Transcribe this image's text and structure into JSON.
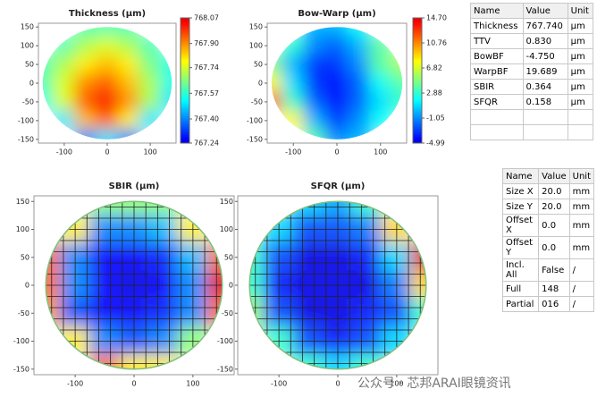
{
  "chart_data": [
    {
      "type": "heatmap",
      "title": "Thickness (µm)",
      "xlim": [
        -160,
        160
      ],
      "ylim": [
        -160,
        160
      ],
      "xticks": [
        -100,
        0,
        100
      ],
      "yticks": [
        150,
        100,
        50,
        0,
        -50,
        -100,
        -150
      ],
      "x": [
        -150,
        -100,
        -50,
        0,
        50,
        100,
        150
      ],
      "y": [
        150,
        100,
        50,
        0,
        -50,
        -100,
        -150
      ],
      "z": [
        [
          null,
          null,
          767.6,
          767.6,
          767.6,
          null,
          null
        ],
        [
          null,
          767.6,
          767.7,
          767.75,
          767.7,
          767.6,
          null
        ],
        [
          767.6,
          767.7,
          767.8,
          767.85,
          767.8,
          767.65,
          767.55
        ],
        [
          767.6,
          767.75,
          767.9,
          767.95,
          767.85,
          767.7,
          767.55
        ],
        [
          767.55,
          767.75,
          767.95,
          768.05,
          767.9,
          767.7,
          767.5
        ],
        [
          null,
          767.5,
          767.85,
          767.95,
          767.8,
          767.5,
          null
        ],
        [
          null,
          null,
          767.4,
          767.5,
          767.4,
          null,
          null
        ]
      ],
      "colorbar_ticks": [
        768.07,
        {
          "value": 767.9,
          "label": "767.90"
        },
        767.74,
        767.57,
        {
          "value": 767.4,
          "label": "767.40"
        },
        767.24
      ]
    },
    {
      "type": "heatmap",
      "title": "Bow-Warp (µm)",
      "xlim": [
        -160,
        160
      ],
      "ylim": [
        -160,
        160
      ],
      "xticks": [
        -100,
        0,
        100
      ],
      "yticks": [
        150,
        100,
        50,
        0,
        -50,
        -100,
        -150
      ],
      "x": [
        -150,
        -100,
        -50,
        0,
        50,
        100,
        150
      ],
      "y": [
        150,
        100,
        50,
        0,
        -50,
        -100,
        -150
      ],
      "z": [
        [
          null,
          null,
          0,
          0,
          2,
          null,
          null
        ],
        [
          null,
          3,
          -1,
          -2,
          0,
          4,
          null
        ],
        [
          5,
          0,
          -3,
          -3,
          -1,
          4,
          6
        ],
        [
          8,
          1,
          -3,
          -4,
          -2,
          2,
          4
        ],
        [
          12,
          3,
          -2,
          -4,
          -2,
          1,
          3
        ],
        [
          null,
          8,
          0,
          -3,
          -1,
          2,
          null
        ],
        [
          null,
          null,
          4,
          -1,
          0,
          null,
          null
        ]
      ],
      "colorbar_ticks": [
        {
          "value": 14.7,
          "label": "14.70"
        },
        10.76,
        6.82,
        2.88,
        -1.05,
        -4.99
      ]
    },
    {
      "type": "sitemap",
      "title": "SBIR (µm)",
      "xlim": [
        -170,
        170
      ],
      "ylim": [
        -160,
        160
      ],
      "xticks": [
        -100,
        0,
        100
      ],
      "yticks": [
        150,
        100,
        50,
        0,
        -50,
        -100,
        -150
      ],
      "x": [
        -150,
        -100,
        -50,
        0,
        50,
        100,
        150
      ],
      "y": [
        150,
        100,
        50,
        0,
        -50,
        -100,
        -150
      ],
      "z": [
        [
          null,
          null,
          0.2,
          0.2,
          0.2,
          null,
          null
        ],
        [
          null,
          0.25,
          0.1,
          0.1,
          0.12,
          0.25,
          null
        ],
        [
          0.3,
          0.1,
          0.05,
          0.05,
          0.06,
          0.12,
          0.3
        ],
        [
          0.3,
          0.1,
          0.05,
          0.04,
          0.05,
          0.1,
          0.35
        ],
        [
          0.28,
          0.08,
          0.05,
          0.05,
          0.06,
          0.1,
          0.3
        ],
        [
          null,
          0.25,
          0.1,
          0.08,
          0.1,
          0.2,
          null
        ],
        [
          null,
          null,
          0.3,
          0.25,
          0.25,
          null,
          null
        ]
      ]
    },
    {
      "type": "sitemap",
      "title": "SFQR (µm)",
      "xlim": [
        -170,
        170
      ],
      "ylim": [
        -160,
        160
      ],
      "xticks": [
        -100,
        0,
        100
      ],
      "yticks": [
        150,
        100,
        50,
        0,
        -50,
        -100,
        -150
      ],
      "x": [
        -150,
        -100,
        -50,
        0,
        50,
        100,
        150
      ],
      "y": [
        150,
        100,
        50,
        0,
        -50,
        -100,
        -150
      ],
      "z": [
        [
          null,
          null,
          0.08,
          0.07,
          0.1,
          null,
          null
        ],
        [
          null,
          0.08,
          0.05,
          0.05,
          0.06,
          0.15,
          null
        ],
        [
          0.1,
          0.05,
          0.03,
          0.03,
          0.04,
          0.08,
          0.2
        ],
        [
          0.1,
          0.04,
          0.03,
          0.03,
          0.03,
          0.06,
          0.15
        ],
        [
          0.12,
          0.05,
          0.03,
          0.03,
          0.04,
          0.05,
          0.1
        ],
        [
          null,
          0.1,
          0.05,
          0.04,
          0.05,
          0.08,
          null
        ],
        [
          null,
          null,
          0.1,
          0.08,
          0.1,
          null,
          null
        ]
      ]
    }
  ],
  "tables": [
    {
      "header": [
        "Name",
        "Value",
        "Unit"
      ],
      "rows": [
        [
          "Thickness",
          "767.740",
          "µm"
        ],
        [
          "TTV",
          "0.830",
          "µm"
        ],
        [
          "BowBF",
          "-4.750",
          "µm"
        ],
        [
          "WarpBF",
          "19.689",
          "µm"
        ],
        [
          "SBIR",
          "0.364",
          "µm"
        ],
        [
          "SFQR",
          "0.158",
          "µm"
        ]
      ]
    },
    {
      "header": [
        "Name",
        "Value",
        "Unit"
      ],
      "rows": [
        [
          "Size X",
          "20.0",
          "mm"
        ],
        [
          "Size Y",
          "20.0",
          "mm"
        ],
        [
          "Offset X",
          "0.0",
          "mm"
        ],
        [
          "Offset Y",
          "0.0",
          "mm"
        ],
        [
          "Incl. All",
          "False",
          "/"
        ],
        [
          "Full",
          "148",
          "/"
        ],
        [
          "Partial",
          "016",
          "/"
        ]
      ]
    }
  ],
  "watermark": "公众号 · 芯邦ARAI眼镜资讯"
}
